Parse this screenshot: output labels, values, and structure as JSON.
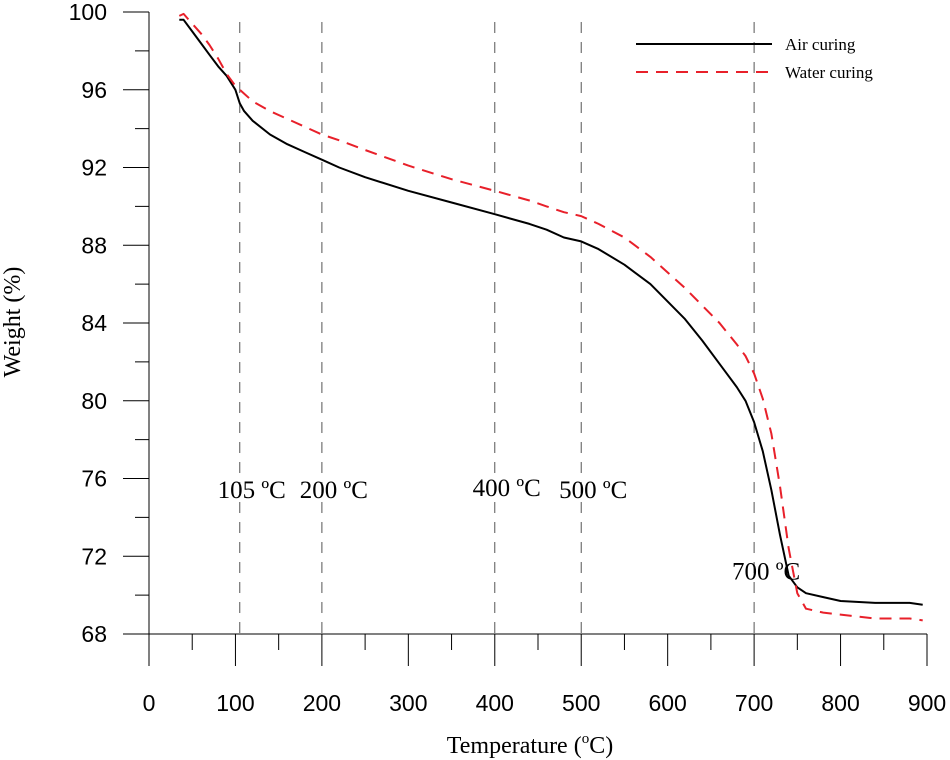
{
  "chart_data": {
    "type": "line",
    "xlabel": "Temperature (",
    "xlabel_sup": "o",
    "xlabel_tail": "C)",
    "ylabel": "Weight (%)",
    "xlim": [
      0,
      900
    ],
    "ylim": [
      68,
      100
    ],
    "xticks": [
      0,
      100,
      200,
      300,
      400,
      500,
      600,
      700,
      800,
      900
    ],
    "yticks": [
      68,
      72,
      76,
      80,
      84,
      88,
      92,
      96,
      100
    ],
    "grid": false,
    "legend_position": "top-right",
    "series": [
      {
        "name": "Air curing",
        "color": "#000000",
        "dash": "solid",
        "x": [
          35,
          40,
          50,
          60,
          70,
          80,
          90,
          100,
          105,
          110,
          120,
          140,
          160,
          180,
          200,
          220,
          250,
          300,
          350,
          400,
          440,
          460,
          480,
          500,
          520,
          550,
          580,
          600,
          620,
          640,
          660,
          680,
          690,
          700,
          710,
          720,
          730,
          740,
          750,
          760,
          780,
          800,
          840,
          880,
          895
        ],
        "y": [
          99.6,
          99.6,
          99.0,
          98.4,
          97.8,
          97.2,
          96.7,
          96.0,
          95.3,
          94.9,
          94.4,
          93.7,
          93.2,
          92.8,
          92.4,
          92.0,
          91.5,
          90.8,
          90.2,
          89.6,
          89.1,
          88.8,
          88.4,
          88.2,
          87.8,
          87.0,
          86.0,
          85.1,
          84.2,
          83.1,
          81.9,
          80.7,
          80.0,
          78.9,
          77.4,
          75.4,
          73.1,
          71.0,
          70.4,
          70.1,
          69.9,
          69.7,
          69.6,
          69.6,
          69.5
        ]
      },
      {
        "name": "Water curing",
        "color": "#e8202a",
        "dash": "dashed",
        "x": [
          35,
          40,
          50,
          60,
          70,
          80,
          90,
          100,
          110,
          120,
          140,
          160,
          180,
          200,
          220,
          250,
          300,
          350,
          400,
          440,
          460,
          480,
          500,
          520,
          550,
          580,
          600,
          620,
          640,
          660,
          680,
          690,
          700,
          710,
          720,
          730,
          740,
          750,
          760,
          780,
          800,
          840,
          880,
          895
        ],
        "y": [
          99.8,
          99.9,
          99.4,
          98.9,
          98.3,
          97.6,
          96.8,
          96.2,
          95.8,
          95.4,
          94.9,
          94.5,
          94.1,
          93.7,
          93.4,
          92.9,
          92.1,
          91.4,
          90.8,
          90.3,
          90.0,
          89.7,
          89.5,
          89.1,
          88.4,
          87.4,
          86.6,
          85.8,
          84.9,
          84.0,
          82.9,
          82.3,
          81.4,
          80.1,
          78.3,
          75.6,
          72.4,
          70.1,
          69.3,
          69.1,
          69.0,
          68.8,
          68.8,
          68.7
        ]
      }
    ],
    "reference_lines": [
      {
        "x": 105,
        "label": "105 ºC",
        "label_y": 75
      },
      {
        "x": 200,
        "label": "200 ºC",
        "label_y": 75
      },
      {
        "x": 400,
        "label": "400 ºC",
        "label_y": 75.1
      },
      {
        "x": 500,
        "label": "500 ºC",
        "label_y": 75
      },
      {
        "x": 700,
        "label": "700 ºC",
        "label_y": 70.8
      }
    ]
  }
}
